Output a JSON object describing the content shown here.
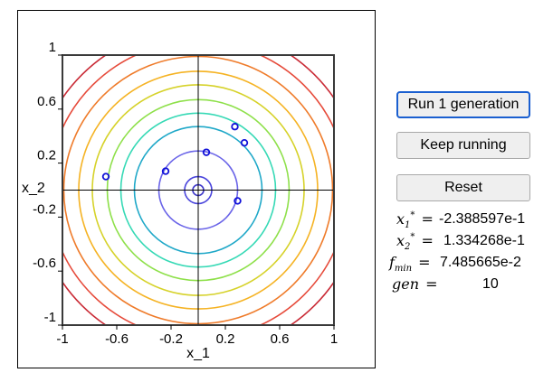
{
  "plot": {
    "xlabel": "x_1",
    "ylabel": "x_2",
    "xlim": [
      -1,
      1
    ],
    "ylim": [
      -1,
      1
    ],
    "x_ticks": [
      "-1",
      "-0.6",
      "-0.2",
      "0.2",
      "0.6",
      "1"
    ],
    "y_ticks": [
      "1",
      "0.6",
      "0.2",
      "-0.2",
      "-0.6",
      "-1"
    ],
    "contour_levels": [
      {
        "radius": 0.04,
        "color": "#3f39c9"
      },
      {
        "radius": 0.1,
        "color": "#4a45dc"
      },
      {
        "radius": 0.29,
        "color": "#6a64e8"
      },
      {
        "radius": 0.47,
        "color": "#1fa8c8"
      },
      {
        "radius": 0.57,
        "color": "#35d9b5"
      },
      {
        "radius": 0.67,
        "color": "#8ee04a"
      },
      {
        "radius": 0.78,
        "color": "#d6d22a"
      },
      {
        "radius": 0.88,
        "color": "#f5b324"
      },
      {
        "radius": 0.99,
        "color": "#ef7b2a"
      },
      {
        "radius": 1.1,
        "color": "#e64a3a"
      },
      {
        "radius": 1.21,
        "color": "#c92a35"
      }
    ],
    "population": [
      {
        "x": -0.68,
        "y": 0.1
      },
      {
        "x": -0.24,
        "y": 0.14
      },
      {
        "x": 0.06,
        "y": 0.28
      },
      {
        "x": 0.27,
        "y": 0.47
      },
      {
        "x": 0.34,
        "y": 0.35
      },
      {
        "x": 0.29,
        "y": -0.08
      }
    ],
    "marker_color": "#1010d8"
  },
  "buttons": {
    "run": "Run 1 generation",
    "keep": "Keep running",
    "reset": "Reset"
  },
  "results": {
    "x1_value": "-2.388597e-1",
    "x2_value": "1.334268e-1",
    "fmin_value": "7.485665e-2",
    "gen_value": "10"
  }
}
